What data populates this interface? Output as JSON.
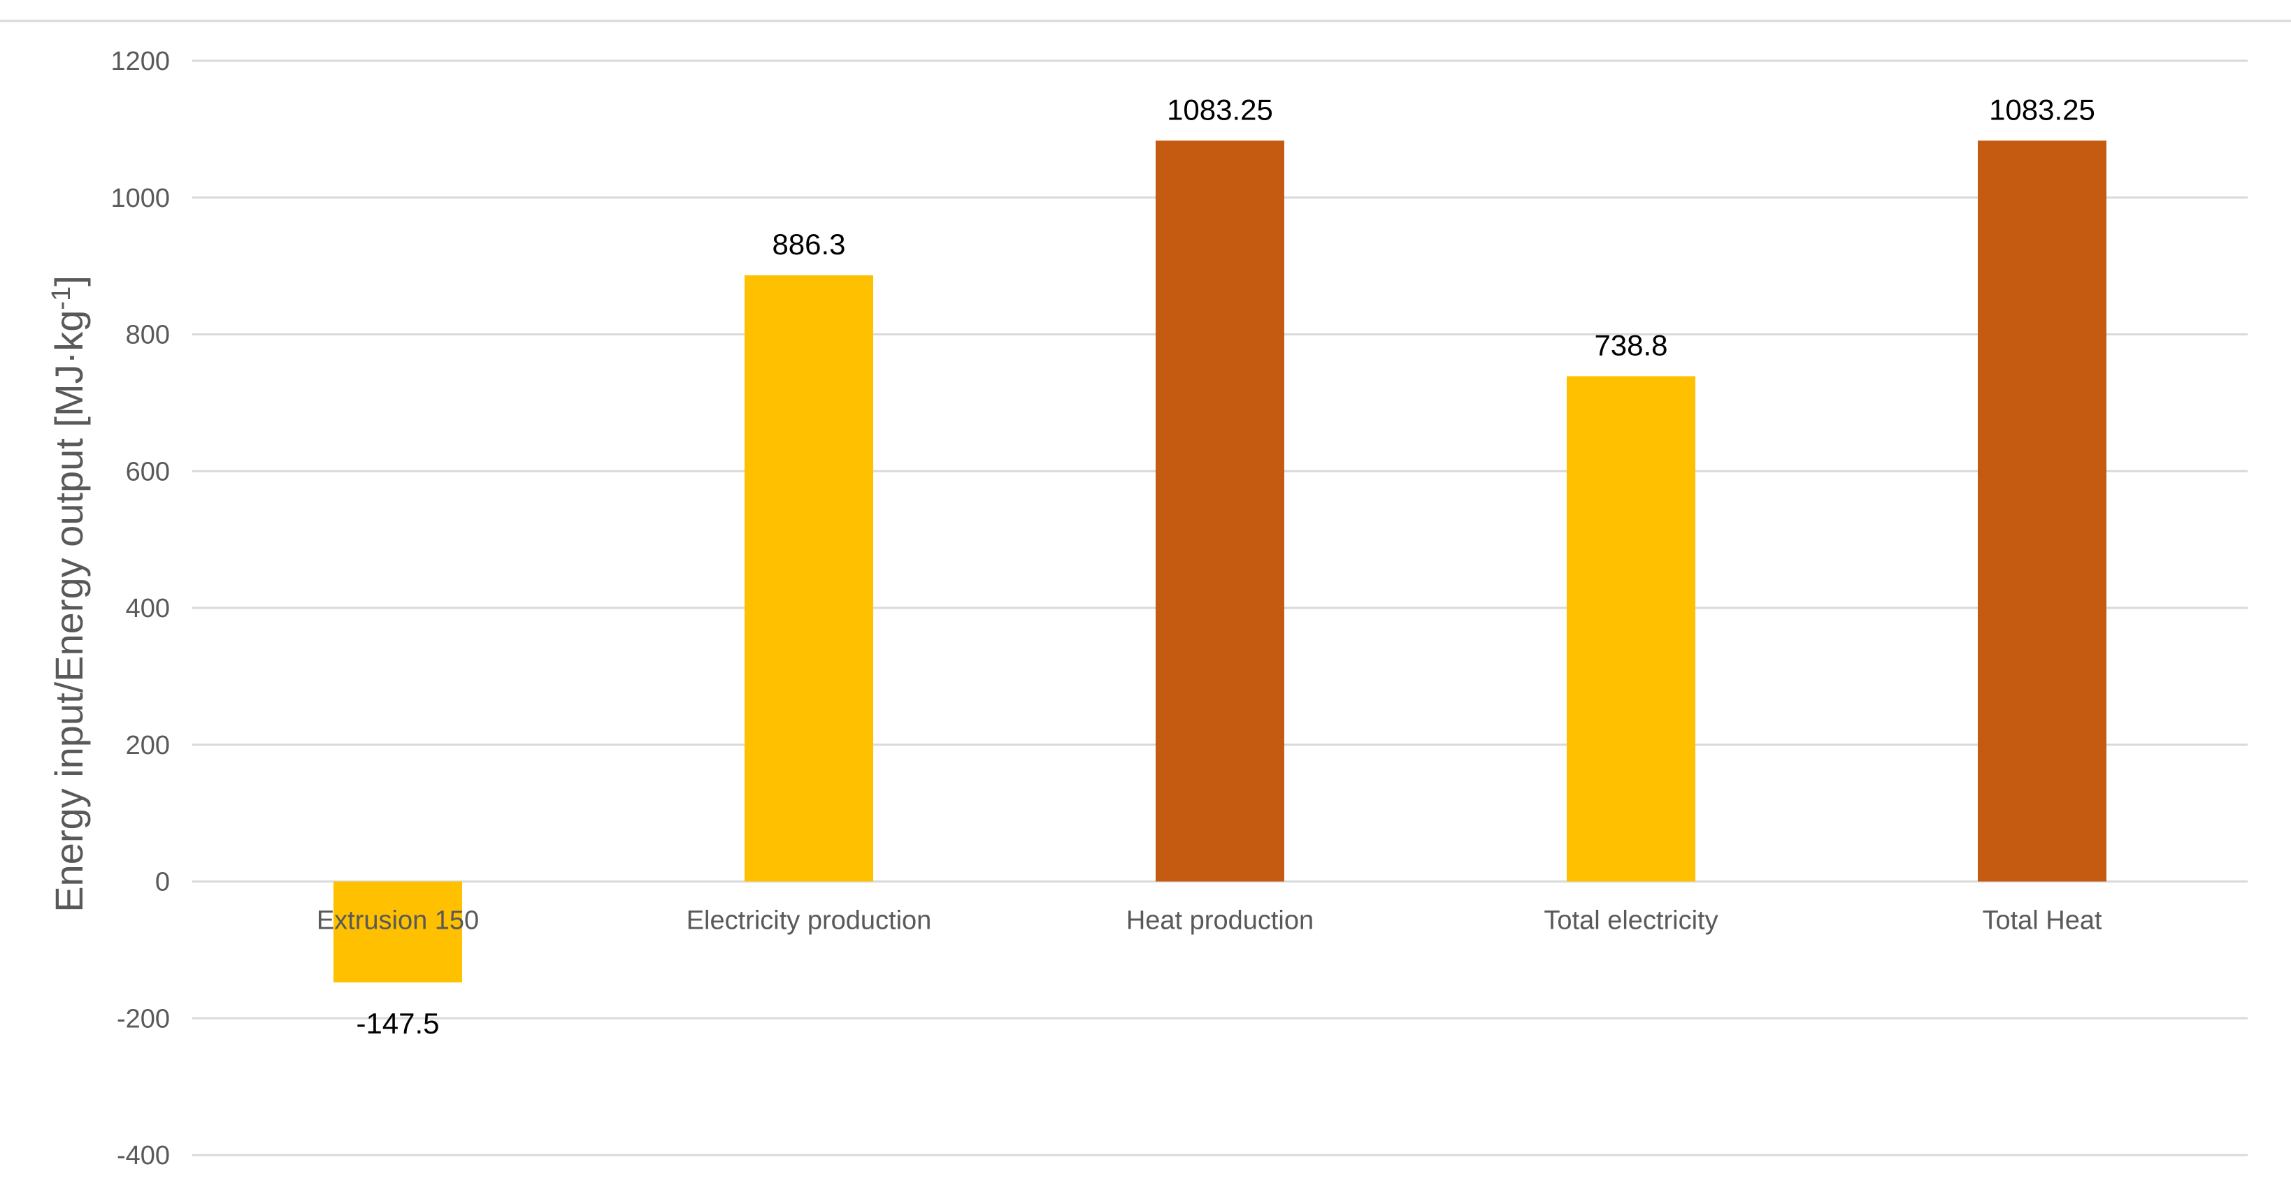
{
  "chart_data": {
    "type": "bar",
    "title": "",
    "xlabel": "",
    "ylabel": "Energy input/Energy output [MJ·kg",
    "ylabel_superscript": "-1",
    "ylabel_suffix": "]",
    "categories": [
      "Extrusion 150",
      "Electricity production",
      "Heat production",
      "Total electricity",
      "Total Heat"
    ],
    "values": [
      -147.5,
      886.3,
      1083.25,
      738.8,
      1083.25
    ],
    "data_labels": [
      "-147.5",
      "886.3",
      "1083.25",
      "738.8",
      "1083.25"
    ],
    "bar_colors": [
      "#FFC000",
      "#FFC000",
      "#C55A11",
      "#FFC000",
      "#C55A11"
    ],
    "ylim": [
      -400,
      1200
    ],
    "yticks": [
      -400,
      -200,
      0,
      200,
      400,
      600,
      800,
      1000,
      1200
    ],
    "ytick_labels": [
      "-400",
      "-200",
      "0",
      "200",
      "400",
      "600",
      "800",
      "1000",
      "1200"
    ],
    "grid": true,
    "legend": "none"
  },
  "colors": {
    "grid": "#D9D9D9",
    "axis_text": "#595959",
    "label_text": "#000000"
  }
}
